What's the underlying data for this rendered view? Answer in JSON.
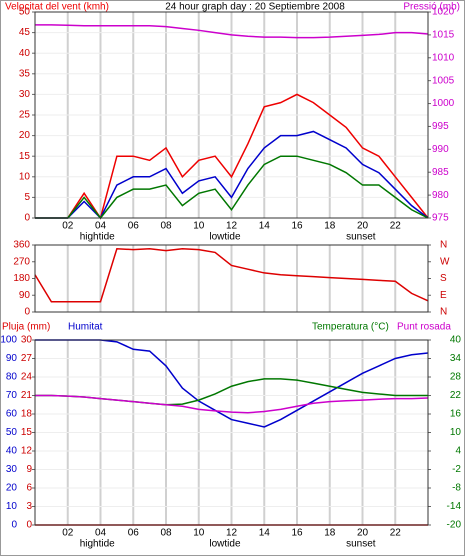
{
  "chart_data": [
    {
      "type": "line",
      "title": "24 hour graph day : 20 Septiembre 2008",
      "x": [
        0,
        1,
        2,
        3,
        4,
        5,
        6,
        7,
        8,
        9,
        10,
        11,
        12,
        13,
        14,
        15,
        16,
        17,
        18,
        19,
        20,
        21,
        22,
        23,
        24
      ],
      "xlim": [
        0,
        24
      ],
      "xticks": [
        {
          "value": 2,
          "label": "02"
        },
        {
          "value": 4,
          "label": "04"
        },
        {
          "value": 6,
          "label": "06"
        },
        {
          "value": 8,
          "label": "08"
        },
        {
          "value": 10,
          "label": "10"
        },
        {
          "value": 12,
          "label": "12"
        },
        {
          "value": 14,
          "label": "14"
        },
        {
          "value": 16,
          "label": "16"
        },
        {
          "value": 18,
          "label": "18"
        },
        {
          "value": 20,
          "label": "20"
        },
        {
          "value": 22,
          "label": "22"
        }
      ],
      "ylim": [
        0,
        50
      ],
      "yticks": [
        0,
        5,
        10,
        15,
        20,
        25,
        30,
        35,
        40,
        45,
        50
      ],
      "y2lim": [
        975,
        1020
      ],
      "y2ticks": [
        975,
        980,
        985,
        990,
        995,
        1000,
        1005,
        1010,
        1015,
        1020
      ],
      "grid": true,
      "annotations": [
        {
          "text": "hightide",
          "x": 3.8
        },
        {
          "text": "lowtide",
          "x": 11.6
        },
        {
          "text": "sunset",
          "x": 19.9
        }
      ],
      "series": [
        {
          "name": "Velocitat del vent (kmh)",
          "color": "#ee0000",
          "values": [
            0,
            0,
            0,
            6,
            0,
            15,
            15,
            14,
            17,
            10,
            14,
            15,
            10,
            18,
            27,
            28,
            30,
            28,
            25,
            22,
            17,
            15,
            10,
            5,
            0
          ]
        },
        {
          "color": "#0000cc",
          "values": [
            0,
            0,
            0,
            4,
            0,
            8,
            10,
            10,
            12,
            6,
            9,
            10,
            5,
            12,
            17,
            20,
            20,
            21,
            19,
            17,
            13,
            11,
            7,
            3,
            0
          ]
        },
        {
          "color": "#007700",
          "values": [
            0,
            0,
            0,
            5,
            0,
            5,
            7,
            7,
            8,
            3,
            6,
            7,
            2,
            8,
            13,
            15,
            15,
            14,
            13,
            11,
            8,
            8,
            5,
            2,
            0
          ]
        },
        {
          "name": "Pressió (mb)",
          "color": "#cc00cc",
          "axis": "y2",
          "values": [
            1017.2,
            1017.2,
            1017.1,
            1017,
            1017,
            1017,
            1017,
            1017,
            1016.8,
            1016.4,
            1016,
            1015.5,
            1015,
            1014.7,
            1014.5,
            1014.5,
            1014.4,
            1014.4,
            1014.5,
            1014.7,
            1014.9,
            1015.1,
            1015.5,
            1015.5,
            1015.2
          ]
        }
      ]
    },
    {
      "type": "line",
      "x": [
        0,
        1,
        2,
        3,
        4,
        5,
        6,
        7,
        8,
        9,
        10,
        11,
        12,
        13,
        14,
        15,
        16,
        17,
        18,
        19,
        20,
        21,
        22,
        23,
        24
      ],
      "xlim": [
        0,
        24
      ],
      "xgrid": [
        2,
        4,
        6,
        8,
        10,
        12,
        14,
        16,
        18,
        20,
        22
      ],
      "ylim": [
        0,
        360
      ],
      "yticks": [
        0,
        90,
        180,
        270,
        360
      ],
      "y2lim": [
        0,
        360
      ],
      "y2ticks": [
        {
          "value": 0,
          "label": "N"
        },
        {
          "value": 90,
          "label": "E"
        },
        {
          "value": 180,
          "label": "S"
        },
        {
          "value": 270,
          "label": "W"
        },
        {
          "value": 360,
          "label": "N"
        }
      ],
      "series": [
        {
          "color": "#dd0000",
          "values": [
            200,
            55,
            55,
            55,
            55,
            340,
            335,
            340,
            330,
            340,
            335,
            320,
            250,
            230,
            210,
            200,
            195,
            190,
            185,
            180,
            175,
            170,
            165,
            100,
            60
          ]
        }
      ]
    },
    {
      "type": "line",
      "x": [
        0,
        1,
        2,
        3,
        4,
        5,
        6,
        7,
        8,
        9,
        10,
        11,
        12,
        13,
        14,
        15,
        16,
        17,
        18,
        19,
        20,
        21,
        22,
        23,
        24
      ],
      "xlim": [
        0,
        24
      ],
      "xticks": [
        {
          "value": 2,
          "label": "02"
        },
        {
          "value": 4,
          "label": "04"
        },
        {
          "value": 6,
          "label": "06"
        },
        {
          "value": 8,
          "label": "08"
        },
        {
          "value": 10,
          "label": "10"
        },
        {
          "value": 12,
          "label": "12"
        },
        {
          "value": 14,
          "label": "14"
        },
        {
          "value": 16,
          "label": "16"
        },
        {
          "value": 18,
          "label": "18"
        },
        {
          "value": 20,
          "label": "20"
        },
        {
          "value": 22,
          "label": "22"
        }
      ],
      "ylim": [
        0,
        100
      ],
      "yticks": [
        0,
        10,
        20,
        30,
        40,
        50,
        60,
        70,
        80,
        90,
        100
      ],
      "y3lim": [
        0,
        30
      ],
      "y3ticks": [
        0,
        3,
        6,
        9,
        12,
        15,
        18,
        21,
        24,
        27,
        30
      ],
      "y2lim": [
        -20,
        40
      ],
      "y2ticks": [
        -20,
        -14,
        -8,
        -2,
        4,
        10,
        16,
        22,
        28,
        34,
        40
      ],
      "grid": true,
      "annotations": [
        {
          "text": "hightide",
          "x": 3.8
        },
        {
          "text": "lowtide",
          "x": 11.6
        },
        {
          "text": "sunset",
          "x": 19.9
        }
      ],
      "series": [
        {
          "name": "Pluja (mm)",
          "color": "#dd0000",
          "axis": "y3",
          "values": [
            0,
            0,
            0,
            0,
            0,
            0,
            0,
            0,
            0,
            0,
            0,
            0,
            0,
            0,
            0,
            0,
            0,
            0,
            0,
            0,
            0,
            0,
            0,
            0,
            0
          ]
        },
        {
          "name": "Humitat",
          "color": "#0000cc",
          "values": [
            100,
            100,
            100,
            100,
            100,
            99,
            95,
            94,
            86,
            74,
            67,
            62,
            57,
            55,
            53,
            57,
            62,
            67,
            72,
            77,
            82,
            86,
            90,
            92,
            93
          ]
        },
        {
          "name": "Temperatura (°C)",
          "color": "#007700",
          "axis": "y2",
          "values": [
            22,
            22,
            21.8,
            21.5,
            21,
            20.5,
            20,
            19.5,
            19,
            19.2,
            20.5,
            22.5,
            25,
            26.5,
            27.4,
            27.4,
            27,
            26,
            25,
            24,
            23,
            22.5,
            22,
            22,
            22
          ]
        },
        {
          "name": "Punt rosada",
          "color": "#cc00cc",
          "axis": "y2",
          "values": [
            22,
            22,
            21.8,
            21.5,
            21,
            20.5,
            20,
            19.5,
            19,
            18.5,
            17.5,
            17,
            16.6,
            16.4,
            16.8,
            17.5,
            18.5,
            19.5,
            20,
            20.3,
            20.5,
            20.8,
            21,
            21,
            21.2
          ]
        }
      ]
    }
  ]
}
